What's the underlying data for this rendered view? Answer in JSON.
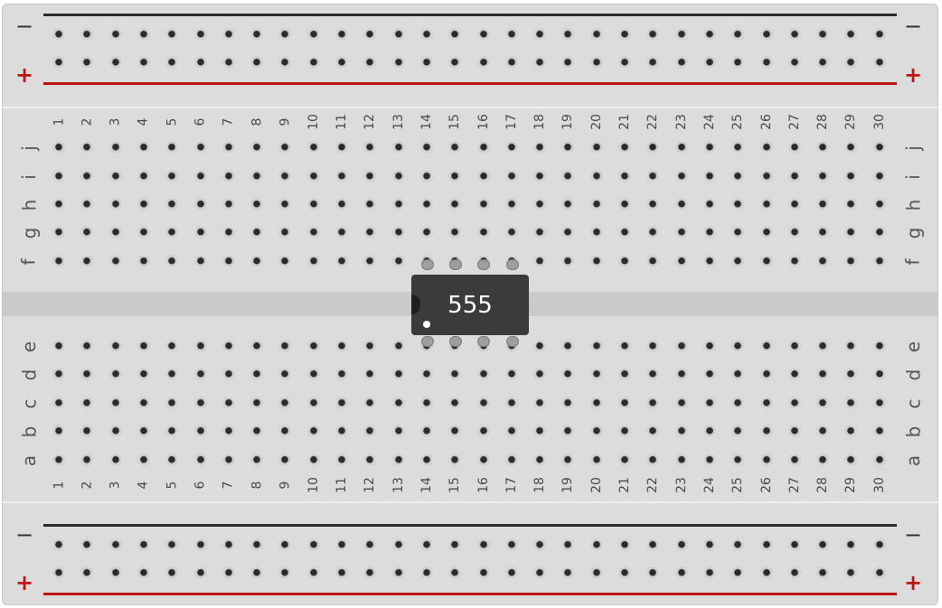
{
  "board": {
    "columns": [
      "1",
      "2",
      "3",
      "4",
      "5",
      "6",
      "7",
      "8",
      "9",
      "10",
      "11",
      "12",
      "13",
      "14",
      "15",
      "16",
      "17",
      "18",
      "19",
      "20",
      "21",
      "22",
      "23",
      "24",
      "25",
      "26",
      "27",
      "28",
      "29",
      "30"
    ],
    "top_rows": [
      "j",
      "i",
      "h",
      "g",
      "f"
    ],
    "bottom_rows": [
      "e",
      "d",
      "c",
      "b",
      "a"
    ],
    "rail_negative_label": "−",
    "rail_positive_label": "+"
  },
  "chip": {
    "label": "555",
    "type": "DIP-8 IC",
    "top_pin_columns": [
      "14",
      "15",
      "16",
      "17"
    ],
    "bottom_pin_columns": [
      "14",
      "15",
      "16",
      "17"
    ]
  },
  "colors": {
    "board": "#dcdcdc",
    "channel": "#cacaca",
    "rail_negative": "#2b2b2b",
    "rail_positive": "#c01414",
    "chip": "#3b3b3b"
  }
}
